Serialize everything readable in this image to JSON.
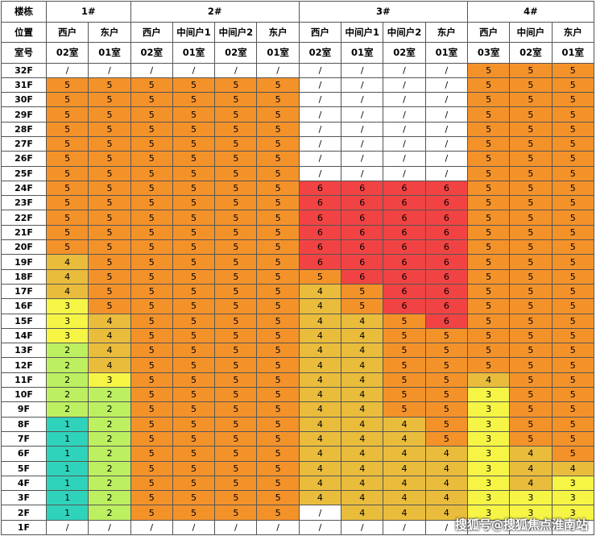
{
  "header": {
    "labels": [
      "楼栋",
      "位置",
      "室号"
    ],
    "buildings": [
      {
        "name": "1#",
        "units": [
          {
            "position": "西户",
            "room": "02室"
          },
          {
            "position": "东户",
            "room": "01室"
          }
        ]
      },
      {
        "name": "2#",
        "units": [
          {
            "position": "西户",
            "room": "02室"
          },
          {
            "position": "中间户1",
            "room": "01室"
          },
          {
            "position": "中间户2",
            "room": "02室"
          },
          {
            "position": "东户",
            "room": "01室"
          }
        ]
      },
      {
        "name": "3#",
        "units": [
          {
            "position": "西户",
            "room": "02室"
          },
          {
            "position": "中间户1",
            "room": "01室"
          },
          {
            "position": "中间户2",
            "room": "02室"
          },
          {
            "position": "东户",
            "room": "01室"
          }
        ]
      },
      {
        "name": "4#",
        "units": [
          {
            "position": "西户",
            "room": "03室"
          },
          {
            "position": "中间户",
            "room": "02室"
          },
          {
            "position": "东户",
            "room": "01室"
          }
        ]
      }
    ]
  },
  "rows": [
    {
      "floor": "32F",
      "cells": [
        "/",
        "/",
        "/",
        "/",
        "/",
        "/",
        "/",
        "/",
        "/",
        "/",
        5,
        5,
        5
      ]
    },
    {
      "floor": "31F",
      "cells": [
        5,
        5,
        5,
        5,
        5,
        5,
        "/",
        "/",
        "/",
        "/",
        5,
        5,
        5
      ]
    },
    {
      "floor": "30F",
      "cells": [
        5,
        5,
        5,
        5,
        5,
        5,
        "/",
        "/",
        "/",
        "/",
        5,
        5,
        5
      ]
    },
    {
      "floor": "29F",
      "cells": [
        5,
        5,
        5,
        5,
        5,
        5,
        "/",
        "/",
        "/",
        "/",
        5,
        5,
        5
      ]
    },
    {
      "floor": "28F",
      "cells": [
        5,
        5,
        5,
        5,
        5,
        5,
        "/",
        "/",
        "/",
        "/",
        5,
        5,
        5
      ]
    },
    {
      "floor": "27F",
      "cells": [
        5,
        5,
        5,
        5,
        5,
        5,
        "/",
        "/",
        "/",
        "/",
        5,
        5,
        5
      ]
    },
    {
      "floor": "26F",
      "cells": [
        5,
        5,
        5,
        5,
        5,
        5,
        "/",
        "/",
        "/",
        "/",
        5,
        5,
        5
      ]
    },
    {
      "floor": "25F",
      "cells": [
        5,
        5,
        5,
        5,
        5,
        5,
        "/",
        "/",
        "/",
        "/",
        5,
        5,
        5
      ]
    },
    {
      "floor": "24F",
      "cells": [
        5,
        5,
        5,
        5,
        5,
        5,
        6,
        6,
        6,
        6,
        5,
        5,
        5
      ]
    },
    {
      "floor": "23F",
      "cells": [
        5,
        5,
        5,
        5,
        5,
        5,
        6,
        6,
        6,
        6,
        5,
        5,
        5
      ]
    },
    {
      "floor": "22F",
      "cells": [
        5,
        5,
        5,
        5,
        5,
        5,
        6,
        6,
        6,
        6,
        5,
        5,
        5
      ]
    },
    {
      "floor": "21F",
      "cells": [
        5,
        5,
        5,
        5,
        5,
        5,
        6,
        6,
        6,
        6,
        5,
        5,
        5
      ]
    },
    {
      "floor": "20F",
      "cells": [
        5,
        5,
        5,
        5,
        5,
        5,
        6,
        6,
        6,
        6,
        5,
        5,
        5
      ]
    },
    {
      "floor": "19F",
      "cells": [
        4,
        5,
        5,
        5,
        5,
        5,
        6,
        6,
        6,
        6,
        5,
        5,
        5
      ]
    },
    {
      "floor": "18F",
      "cells": [
        4,
        5,
        5,
        5,
        5,
        5,
        5,
        6,
        6,
        6,
        5,
        5,
        5
      ]
    },
    {
      "floor": "17F",
      "cells": [
        4,
        5,
        5,
        5,
        5,
        5,
        4,
        5,
        6,
        6,
        5,
        5,
        5
      ]
    },
    {
      "floor": "16F",
      "cells": [
        3,
        5,
        5,
        5,
        5,
        5,
        4,
        5,
        6,
        6,
        5,
        5,
        5
      ]
    },
    {
      "floor": "15F",
      "cells": [
        3,
        4,
        5,
        5,
        5,
        5,
        4,
        4,
        5,
        6,
        5,
        5,
        5
      ]
    },
    {
      "floor": "14F",
      "cells": [
        3,
        4,
        5,
        5,
        5,
        5,
        4,
        4,
        5,
        5,
        5,
        5,
        5
      ]
    },
    {
      "floor": "13F",
      "cells": [
        2,
        4,
        5,
        5,
        5,
        5,
        4,
        4,
        5,
        5,
        5,
        5,
        5
      ]
    },
    {
      "floor": "12F",
      "cells": [
        2,
        4,
        5,
        5,
        5,
        5,
        4,
        4,
        5,
        5,
        5,
        5,
        5
      ]
    },
    {
      "floor": "11F",
      "cells": [
        2,
        3,
        5,
        5,
        5,
        5,
        4,
        4,
        5,
        5,
        4,
        5,
        5
      ]
    },
    {
      "floor": "10F",
      "cells": [
        2,
        2,
        5,
        5,
        5,
        5,
        4,
        4,
        5,
        5,
        3,
        5,
        5
      ]
    },
    {
      "floor": "9F",
      "cells": [
        2,
        2,
        5,
        5,
        5,
        5,
        4,
        4,
        5,
        5,
        3,
        5,
        5
      ]
    },
    {
      "floor": "8F",
      "cells": [
        1,
        2,
        5,
        5,
        5,
        5,
        4,
        4,
        4,
        5,
        3,
        5,
        5
      ]
    },
    {
      "floor": "7F",
      "cells": [
        1,
        2,
        5,
        5,
        5,
        5,
        4,
        4,
        4,
        5,
        3,
        5,
        5
      ]
    },
    {
      "floor": "6F",
      "cells": [
        1,
        2,
        5,
        5,
        5,
        5,
        4,
        4,
        4,
        4,
        3,
        4,
        5
      ]
    },
    {
      "floor": "5F",
      "cells": [
        1,
        2,
        5,
        5,
        5,
        5,
        4,
        4,
        4,
        4,
        3,
        4,
        4
      ]
    },
    {
      "floor": "4F",
      "cells": [
        1,
        2,
        5,
        5,
        5,
        5,
        4,
        4,
        4,
        4,
        3,
        4,
        3
      ]
    },
    {
      "floor": "3F",
      "cells": [
        1,
        2,
        5,
        5,
        5,
        5,
        4,
        4,
        4,
        4,
        3,
        3,
        3
      ]
    },
    {
      "floor": "2F",
      "cells": [
        1,
        2,
        5,
        5,
        5,
        5,
        "/",
        4,
        4,
        4,
        3,
        3,
        3
      ]
    },
    {
      "floor": "1F",
      "cells": [
        "/",
        "/",
        "/",
        "/",
        "/",
        "/",
        "/",
        "/",
        "/",
        "/",
        "/",
        "/",
        "/"
      ]
    }
  ],
  "colors": {
    "1": "#2fd3bb",
    "2": "#bdf061",
    "3": "#f6f545",
    "4": "#e9bc3c",
    "5": "#f4922a",
    "6": "#f14343",
    "/": "#ffffff"
  },
  "watermark": "搜狐号@搜狐焦点淮南站"
}
